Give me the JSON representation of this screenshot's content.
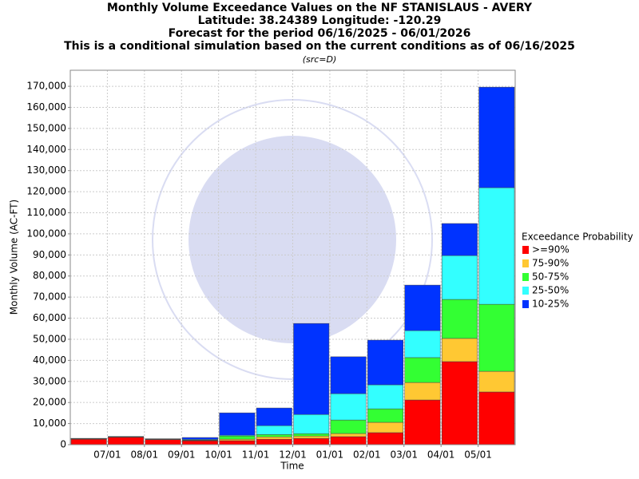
{
  "chart_data": {
    "type": "stacked_bar",
    "title": "Monthly Volume Exceedance Values on the NF STANISLAUS - AVERY",
    "subtitles": [
      "Latitude: 38.24389 Longitude: -120.29",
      "Forecast for the period 06/16/2025 - 06/01/2026",
      "This is a conditional simulation based on the current conditions as of 06/16/2025"
    ],
    "source_note": "(src=D)",
    "x_label": "Time",
    "y_label": "Monthly Volume (AC-FT)",
    "legend_title": "Exceedance Probability",
    "xticks": [
      "07/01",
      "08/01",
      "09/01",
      "10/01",
      "11/01",
      "12/01",
      "01/01",
      "02/01",
      "03/01",
      "04/01",
      "05/01"
    ],
    "series": [
      {
        "name": ">=90%",
        "color": "#ff0000",
        "values": [
          2600,
          3500,
          2400,
          1800,
          1900,
          2600,
          3000,
          3800,
          5700,
          21200,
          39400,
          25000
        ]
      },
      {
        "name": "75-90%",
        "color": "#ffc833",
        "values": [
          100,
          100,
          100,
          200,
          700,
          1100,
          1100,
          1500,
          4900,
          8300,
          11000,
          9800
        ]
      },
      {
        "name": "50-75%",
        "color": "#33ff33",
        "values": [
          100,
          100,
          100,
          200,
          1500,
          1100,
          1100,
          6400,
          6400,
          11800,
          18500,
          31800
        ]
      },
      {
        "name": "25-50%",
        "color": "#33ffff",
        "values": [
          100,
          100,
          100,
          300,
          400,
          4200,
          9100,
          12500,
          11400,
          12800,
          20800,
          55300
        ]
      },
      {
        "name": "10-25%",
        "color": "#0033ff",
        "values": [
          100,
          100,
          100,
          900,
          10600,
          8400,
          43200,
          17500,
          21200,
          21600,
          15200,
          47700
        ]
      }
    ],
    "ylim": [
      0,
      177600
    ],
    "yticks": [
      0,
      {
        "value": 10000,
        "label": "10,000"
      },
      {
        "value": 20000,
        "label": "20,000"
      },
      {
        "value": 30000,
        "label": "30,000"
      },
      {
        "value": 40000,
        "label": "40,000"
      },
      {
        "value": 50000,
        "label": "50,000"
      },
      {
        "value": 60000,
        "label": "60,000"
      },
      {
        "value": 70000,
        "label": "70,000"
      },
      {
        "value": 80000,
        "label": "80,000"
      },
      {
        "value": 90000,
        "label": "90,000"
      },
      {
        "value": 100000,
        "label": "100,000"
      },
      {
        "value": 110000,
        "label": "110,000"
      },
      {
        "value": 120000,
        "label": "120,000"
      },
      {
        "value": 130000,
        "label": "130,000"
      },
      {
        "value": 140000,
        "label": "140,000"
      },
      {
        "value": 150000,
        "label": "150,000"
      },
      {
        "value": 160000,
        "label": "160,000"
      },
      {
        "value": 170000,
        "label": "170,000"
      }
    ],
    "grid": true
  }
}
